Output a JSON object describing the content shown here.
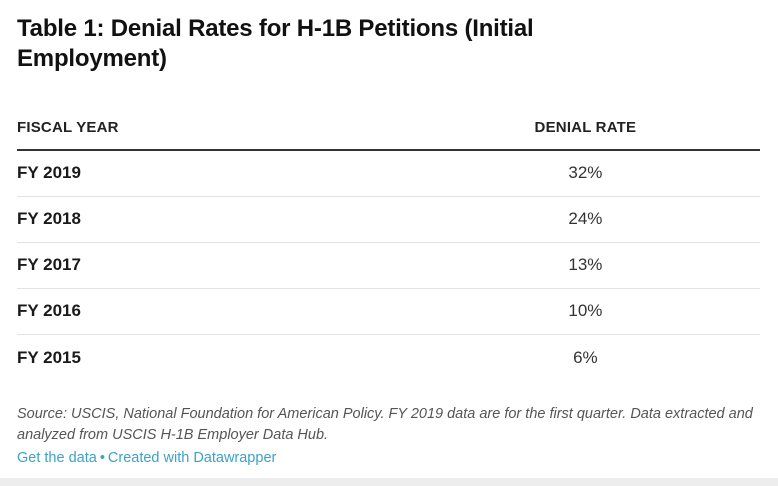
{
  "page": {
    "title": "Table 1: Denial Rates for H-1B Petitions (Initial Employment)"
  },
  "table": {
    "columns": {
      "fiscal_year": "FISCAL YEAR",
      "denial_rate": "DENIAL RATE"
    },
    "rows": [
      {
        "year": "FY 2019",
        "rate": "32%"
      },
      {
        "year": "FY 2018",
        "rate": "24%"
      },
      {
        "year": "FY 2017",
        "rate": "13%"
      },
      {
        "year": "FY 2016",
        "rate": "10%"
      },
      {
        "year": "FY 2015",
        "rate": "6%"
      }
    ]
  },
  "footer": {
    "source_note": "Source: USCIS, National Foundation for American Policy. FY 2019 data are for the first quarter. Data extracted and analyzed from USCIS H-1B Employer Data Hub.",
    "get_data_label": "Get the data",
    "separator": "•",
    "credit_label": "Created with Datawrapper"
  },
  "colors": {
    "heading_text": "#111111",
    "strong_rule": "#333333",
    "row_separator": "#e3e3e3",
    "source_text": "#555555",
    "link": "#3aa3c7",
    "bottom_edge": "#ededed"
  },
  "chart_data": {
    "type": "table",
    "title": "Table 1: Denial Rates for H-1B Petitions (Initial Employment)",
    "columns": [
      "FISCAL YEAR",
      "DENIAL RATE"
    ],
    "categories": [
      "FY 2019",
      "FY 2018",
      "FY 2017",
      "FY 2016",
      "FY 2015"
    ],
    "values": [
      32,
      24,
      13,
      10,
      6
    ],
    "value_unit": "%",
    "source": "Source: USCIS, National Foundation for American Policy. FY 2019 data are for the first quarter. Data extracted and analyzed from USCIS H-1B Employer Data Hub.",
    "credit": "Created with Datawrapper"
  }
}
